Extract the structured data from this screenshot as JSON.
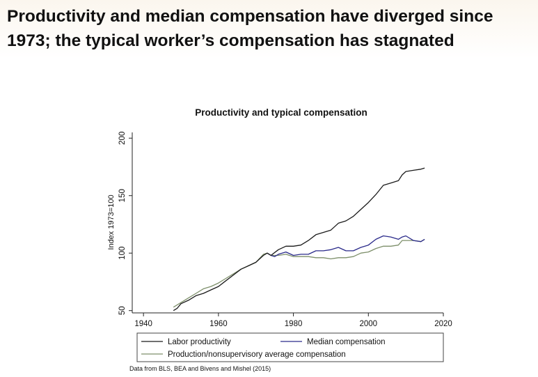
{
  "slide": {
    "title_line1": "Productivity and median compensation have diverged since",
    "title_line2": "1973; the typical worker’s compensation has stagnated",
    "source_note": "Data from BLS, BEA and Bivens and Mishel (2015)"
  },
  "colors": {
    "labor_productivity": "#1a1a1a",
    "median_compensation": "#2a2a8a",
    "production_compensation": "#7d8f6a"
  },
  "chart_data": {
    "type": "line",
    "title": "Productivity and typical compensation",
    "xlabel": "",
    "ylabel": "Index 1973=100",
    "xlim": [
      1937,
      2020
    ],
    "ylim": [
      48,
      205
    ],
    "xticks": [
      1940,
      1960,
      1980,
      2000,
      2020
    ],
    "yticks": [
      50,
      100,
      150,
      200
    ],
    "grid": false,
    "legend_position": "bottom",
    "series": [
      {
        "name": "Labor productivity",
        "color_key": "labor_productivity",
        "points": [
          [
            1948,
            50
          ],
          [
            1949,
            52
          ],
          [
            1950,
            56
          ],
          [
            1952,
            59
          ],
          [
            1954,
            63
          ],
          [
            1956,
            65
          ],
          [
            1958,
            68
          ],
          [
            1960,
            71
          ],
          [
            1962,
            76
          ],
          [
            1964,
            81
          ],
          [
            1966,
            86
          ],
          [
            1968,
            89
          ],
          [
            1970,
            92
          ],
          [
            1972,
            98
          ],
          [
            1973,
            100
          ],
          [
            1974,
            98
          ],
          [
            1976,
            103
          ],
          [
            1978,
            106
          ],
          [
            1980,
            106
          ],
          [
            1982,
            107
          ],
          [
            1984,
            111
          ],
          [
            1986,
            116
          ],
          [
            1988,
            118
          ],
          [
            1990,
            120
          ],
          [
            1992,
            126
          ],
          [
            1994,
            128
          ],
          [
            1996,
            132
          ],
          [
            1998,
            138
          ],
          [
            2000,
            144
          ],
          [
            2002,
            151
          ],
          [
            2004,
            159
          ],
          [
            2006,
            161
          ],
          [
            2008,
            163
          ],
          [
            2009,
            168
          ],
          [
            2010,
            171
          ],
          [
            2012,
            172
          ],
          [
            2014,
            173
          ],
          [
            2015,
            174
          ]
        ]
      },
      {
        "name": "Median compensation",
        "color_key": "median_compensation",
        "points": [
          [
            1973,
            100
          ],
          [
            1974,
            98
          ],
          [
            1975,
            97
          ],
          [
            1976,
            99
          ],
          [
            1978,
            101
          ],
          [
            1980,
            98
          ],
          [
            1982,
            99
          ],
          [
            1984,
            99
          ],
          [
            1986,
            102
          ],
          [
            1988,
            102
          ],
          [
            1990,
            103
          ],
          [
            1992,
            105
          ],
          [
            1994,
            102
          ],
          [
            1996,
            102
          ],
          [
            1998,
            105
          ],
          [
            2000,
            107
          ],
          [
            2002,
            112
          ],
          [
            2004,
            115
          ],
          [
            2006,
            114
          ],
          [
            2008,
            112
          ],
          [
            2009,
            114
          ],
          [
            2010,
            115
          ],
          [
            2012,
            111
          ],
          [
            2014,
            110
          ],
          [
            2015,
            112
          ]
        ]
      },
      {
        "name": "Production/nonsupervisory average compensation",
        "color_key": "production_compensation",
        "points": [
          [
            1948,
            53
          ],
          [
            1950,
            57
          ],
          [
            1952,
            61
          ],
          [
            1954,
            65
          ],
          [
            1956,
            69
          ],
          [
            1958,
            71
          ],
          [
            1960,
            74
          ],
          [
            1962,
            78
          ],
          [
            1964,
            82
          ],
          [
            1966,
            86
          ],
          [
            1968,
            89
          ],
          [
            1970,
            92
          ],
          [
            1972,
            99
          ],
          [
            1973,
            100
          ],
          [
            1974,
            98
          ],
          [
            1976,
            98
          ],
          [
            1978,
            99
          ],
          [
            1980,
            97
          ],
          [
            1982,
            97
          ],
          [
            1984,
            97
          ],
          [
            1986,
            96
          ],
          [
            1988,
            96
          ],
          [
            1990,
            95
          ],
          [
            1992,
            96
          ],
          [
            1994,
            96
          ],
          [
            1996,
            97
          ],
          [
            1998,
            100
          ],
          [
            2000,
            101
          ],
          [
            2002,
            104
          ],
          [
            2004,
            106
          ],
          [
            2006,
            106
          ],
          [
            2008,
            107
          ],
          [
            2009,
            111
          ],
          [
            2010,
            111
          ],
          [
            2012,
            111
          ],
          [
            2014,
            110
          ],
          [
            2015,
            112
          ]
        ]
      }
    ]
  }
}
